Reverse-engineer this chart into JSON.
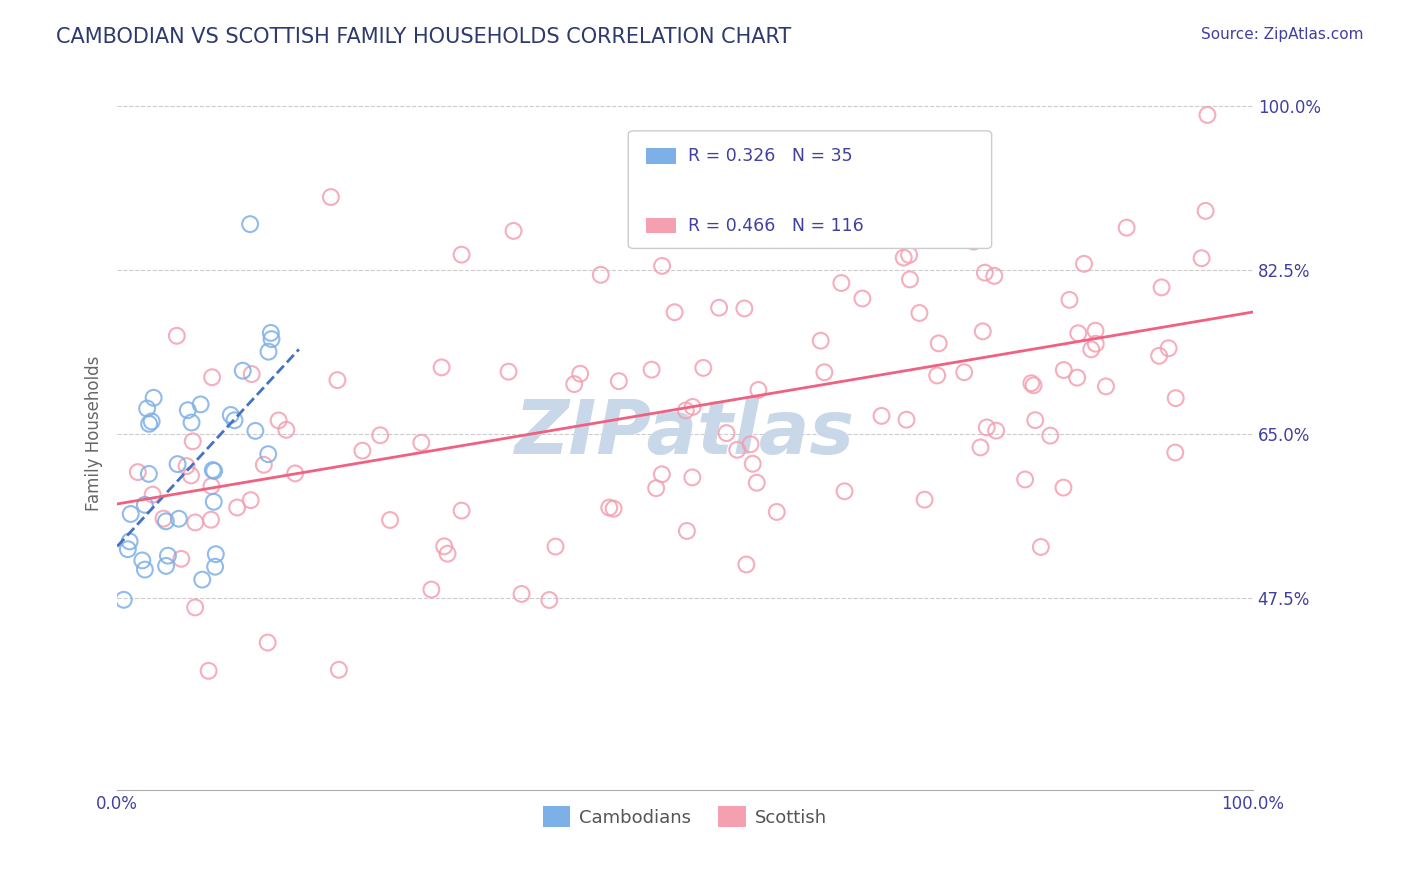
{
  "title": "CAMBODIAN VS SCOTTISH FAMILY HOUSEHOLDS CORRELATION CHART",
  "source": "Source: ZipAtlas.com",
  "ylabel": "Family Households",
  "legend_r1": "R = 0.326",
  "legend_n1": "N = 35",
  "legend_r2": "R = 0.466",
  "legend_n2": "N = 116",
  "legend_label1": "Cambodians",
  "legend_label2": "Scottish",
  "cambodian_color": "#7EB0E8",
  "scottish_color": "#F4A0B0",
  "trend_color_cambodian": "#4472C4",
  "trend_color_scottish": "#F06080",
  "watermark_color": "#C8D8E8",
  "title_color": "#2E3A6E",
  "tick_color": "#4040A0",
  "background_color": "#FFFFFF"
}
